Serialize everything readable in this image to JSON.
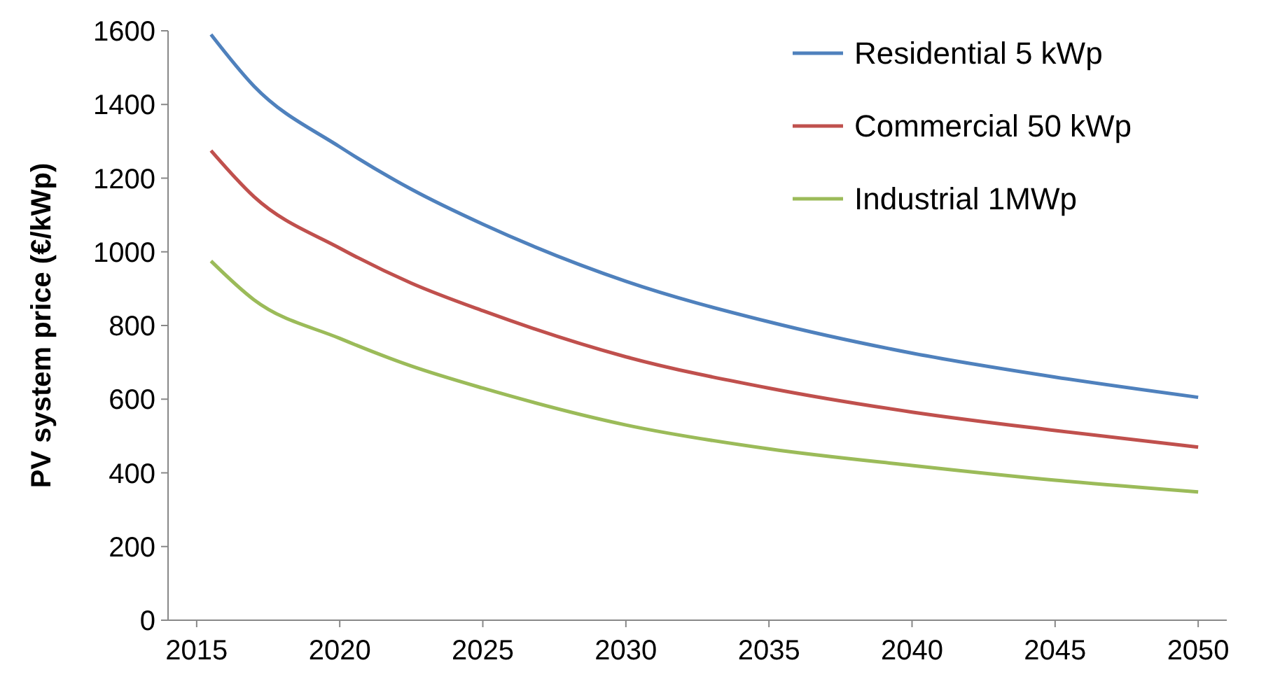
{
  "chart_data": {
    "type": "line",
    "ylabel": "PV system price (€/kWp)",
    "x": [
      2015.5,
      2017,
      2020,
      2022.5,
      2025,
      2030,
      2035,
      2040,
      2045,
      2050
    ],
    "series": [
      {
        "name": "Residential 5 kWp",
        "color": "#4f81bd",
        "values": [
          1590,
          1450,
          1285,
          1170,
          1075,
          920,
          810,
          725,
          660,
          605
        ]
      },
      {
        "name": "Commercial 50 kWp",
        "color": "#c0504d",
        "values": [
          1275,
          1150,
          1010,
          915,
          840,
          715,
          630,
          565,
          515,
          470
        ]
      },
      {
        "name": "Industrial 1MWp",
        "color": "#9bbb59",
        "values": [
          975,
          870,
          765,
          690,
          630,
          530,
          465,
          420,
          380,
          348
        ]
      }
    ],
    "xlim": [
      2014,
      2051
    ],
    "xticks": [
      2015,
      2020,
      2025,
      2030,
      2035,
      2040,
      2045,
      2050
    ],
    "ylim": [
      0,
      1600
    ],
    "yticks": [
      0,
      200,
      400,
      600,
      800,
      1000,
      1200,
      1400,
      1600
    ],
    "grid": false,
    "legend": "top right",
    "marker": "none",
    "line_style": "solid"
  }
}
